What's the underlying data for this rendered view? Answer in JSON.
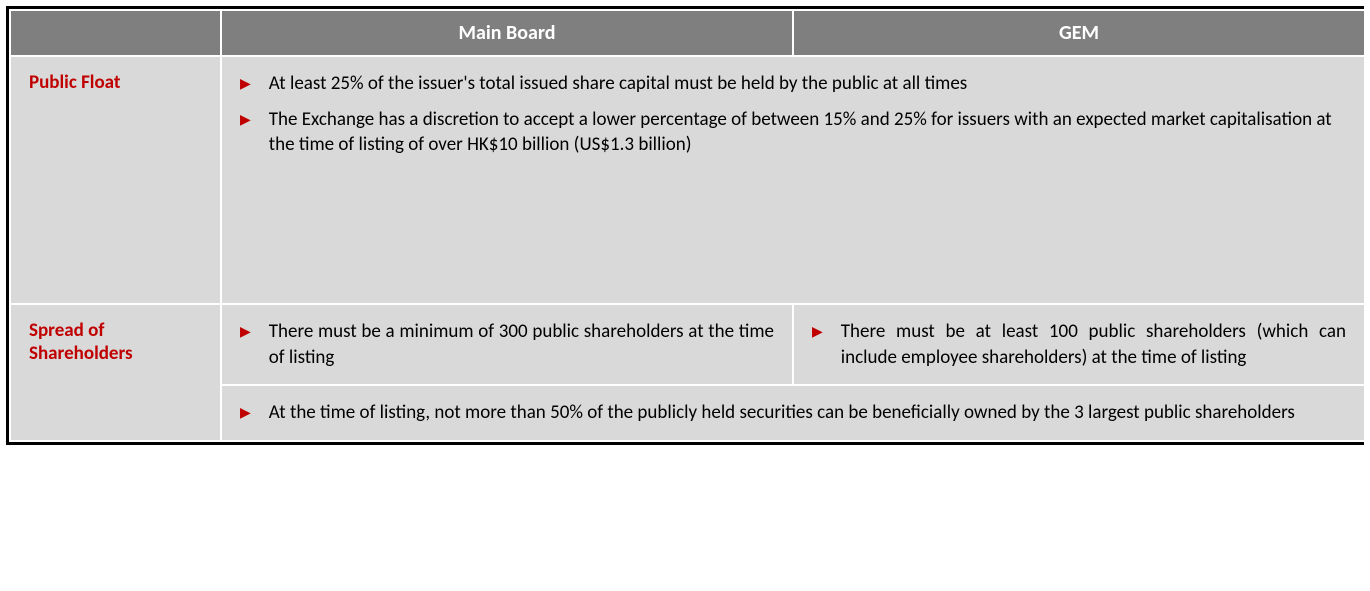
{
  "table": {
    "headers": {
      "blank": "",
      "mainBoard": "Main Board",
      "gem": "GEM"
    },
    "rows": {
      "publicFloat": {
        "label": "Public Float",
        "merged": {
          "bullets": [
            "At least 25% of the issuer's total issued share capital must be held by the public at all times",
            "The Exchange has a discretion to accept a lower percentage of between 15% and 25% for issuers with an expected market capitalisation at the time of listing of over HK$10 billion (US$1.3 billion)"
          ]
        }
      },
      "spread": {
        "label": "Spread of Shareholders",
        "mainBoard": {
          "bullets": [
            "There must be a minimum of 300 public shareholders at the time of listing"
          ]
        },
        "gem": {
          "bullets": [
            "There must be at least 100 public shareholders (which can include employee shareholders) at the time of listing"
          ]
        },
        "merged": {
          "bullets": [
            "At the time of listing, not more than 50% of the publicly held securities can be beneficially owned by the 3 largest public shareholders"
          ]
        }
      }
    }
  },
  "colors": {
    "headerBg": "#7f7f7f",
    "headerText": "#ffffff",
    "cellBg": "#d9d9d9",
    "borderColor": "#ffffff",
    "outerBorder": "#000000",
    "labelText": "#c00000",
    "bulletMarker": "#c00000",
    "bodyText": "#000000"
  }
}
